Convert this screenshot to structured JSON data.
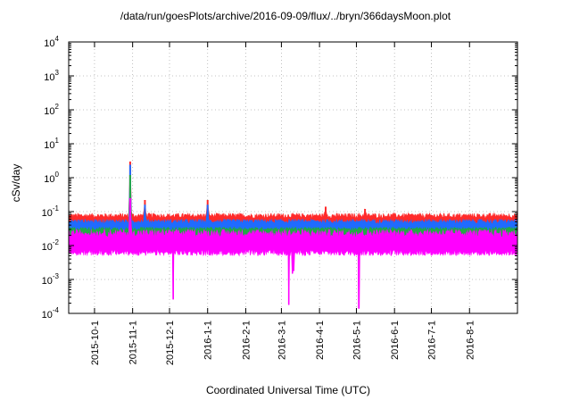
{
  "chart_data": {
    "type": "line",
    "title": "/data/run/goesPlots/archive/2016-09-09/flux/../bryn/366daysMoon.plot",
    "xlabel": "Coordinated Universal Time (UTC)",
    "ylabel": "cSv/day",
    "yscale": "log",
    "ylim": [
      0.0001,
      10000
    ],
    "xlim": [
      "2015-09-10",
      "2016-09-09"
    ],
    "grid": true,
    "legend": "none",
    "y_ticks": [
      {
        "base": "10",
        "exp": "-4"
      },
      {
        "base": "10",
        "exp": "-3"
      },
      {
        "base": "10",
        "exp": "-2"
      },
      {
        "base": "10",
        "exp": "-1"
      },
      {
        "base": "10",
        "exp": "0"
      },
      {
        "base": "10",
        "exp": "1"
      },
      {
        "base": "10",
        "exp": "2"
      },
      {
        "base": "10",
        "exp": "3"
      },
      {
        "base": "10",
        "exp": "4"
      }
    ],
    "x_ticks": [
      "2015-10-1",
      "2015-11-1",
      "2015-12-1",
      "2016-1-1",
      "2016-2-1",
      "2016-3-1",
      "2016-4-1",
      "2016-5-1",
      "2016-6-1",
      "2016-7-1",
      "2016-8-1"
    ],
    "series": [
      {
        "color": "#ff2a2a",
        "baseline": 0.055,
        "typical_peak": 0.09,
        "spikes": [
          {
            "x": "2015-10-30",
            "y": 3.0
          },
          {
            "x": "2015-11-11",
            "y": 0.22
          },
          {
            "x": "2016-01-01",
            "y": 0.22
          },
          {
            "x": "2016-04-06",
            "y": 0.14
          },
          {
            "x": "2016-05-08",
            "y": 0.12
          }
        ]
      },
      {
        "color": "#1f6bff",
        "baseline": 0.038,
        "typical_peak": 0.06,
        "spikes": [
          {
            "x": "2015-10-30",
            "y": 2.4
          },
          {
            "x": "2015-11-11",
            "y": 0.16
          },
          {
            "x": "2016-01-01",
            "y": 0.16
          }
        ]
      },
      {
        "color": "#22aa44",
        "baseline": 0.025,
        "typical_peak": 0.035,
        "spikes": [
          {
            "x": "2015-10-30",
            "y": 1.2
          }
        ]
      },
      {
        "color": "#ff00ff",
        "baseline": 0.014,
        "floor": 0.005,
        "typical_peak": 0.03,
        "spikes": [
          {
            "x": "2015-10-30",
            "y": 0.25
          }
        ],
        "dips": [
          {
            "x": "2015-12-04",
            "y": 0.00026
          },
          {
            "x": "2016-03-07",
            "y": 0.00018
          },
          {
            "x": "2016-03-10",
            "y": 0.0015
          },
          {
            "x": "2016-03-11",
            "y": 0.0018
          },
          {
            "x": "2016-05-03",
            "y": 0.00014
          }
        ]
      }
    ]
  }
}
